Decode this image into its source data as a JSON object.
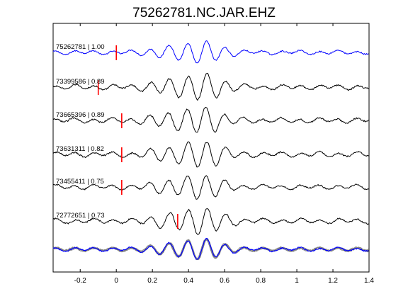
{
  "chart_data": {
    "type": "line",
    "title": "75262781.NC.JAR.EHZ",
    "xlabel": "",
    "ylabel": "",
    "xlim": [
      -0.35,
      1.4
    ],
    "x_ticks": [
      -0.2,
      0,
      0.2,
      0.4,
      0.6,
      0.8,
      1,
      1.2,
      1.4
    ],
    "x_tick_labels": [
      "-0.2",
      "0",
      "0.2",
      "0.4",
      "0.6",
      "0.8",
      "1",
      "1.2",
      "1.4"
    ],
    "grid": false,
    "colors": {
      "reference": "#0000ff",
      "trace": "#000000",
      "overlay": "#808080",
      "pick": "#ff0000"
    },
    "series": [
      {
        "name": "75262781 | 1.00",
        "label": "75262781 | 1.00",
        "pick": 0.0,
        "role": "reference"
      },
      {
        "name": "73399586 | 0.89",
        "label": "73399586 | 0.89",
        "pick": -0.1,
        "role": "trace"
      },
      {
        "name": "73665396 | 0.89",
        "label": "73665396 | 0.89",
        "pick": 0.03,
        "role": "trace"
      },
      {
        "name": "73631311 | 0.82",
        "label": "73631311 | 0.82",
        "pick": 0.03,
        "role": "trace"
      },
      {
        "name": "73455411 | 0.75",
        "label": "73455411 | 0.75",
        "pick": 0.03,
        "role": "trace"
      },
      {
        "name": "72772651 | 0.73",
        "label": "72772651 | 0.73",
        "pick": 0.34,
        "role": "trace"
      }
    ]
  }
}
